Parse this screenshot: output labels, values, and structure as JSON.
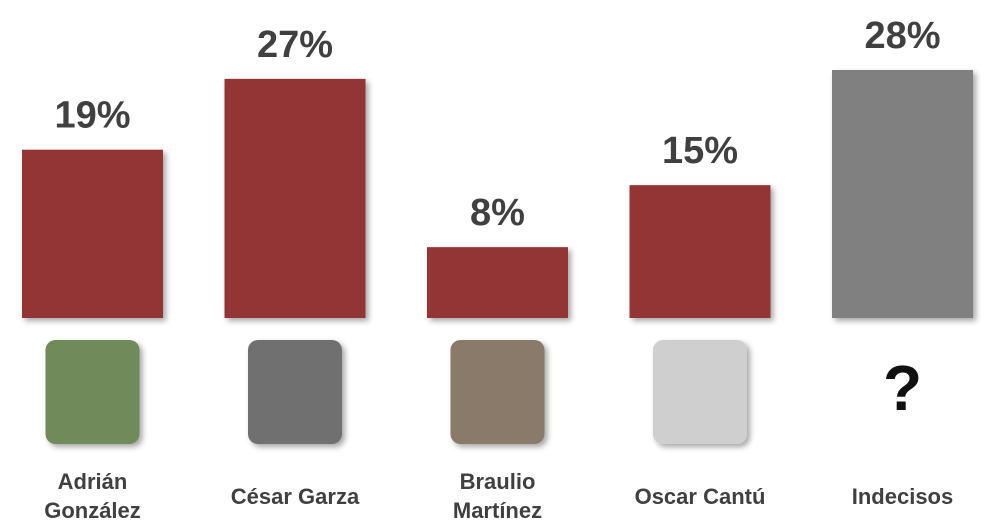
{
  "chart_data": {
    "type": "bar",
    "categories": [
      "Adrián González",
      "César Garza",
      "Braulio Martínez",
      "Oscar Cantú",
      "Indecisos"
    ],
    "values": [
      19,
      27,
      8,
      15,
      28
    ],
    "value_labels": [
      "19%",
      "27%",
      "8%",
      "15%",
      "28%"
    ],
    "colors": [
      "#943634",
      "#943634",
      "#943634",
      "#943634",
      "#808080"
    ],
    "annotations": [
      "?"
    ]
  }
}
